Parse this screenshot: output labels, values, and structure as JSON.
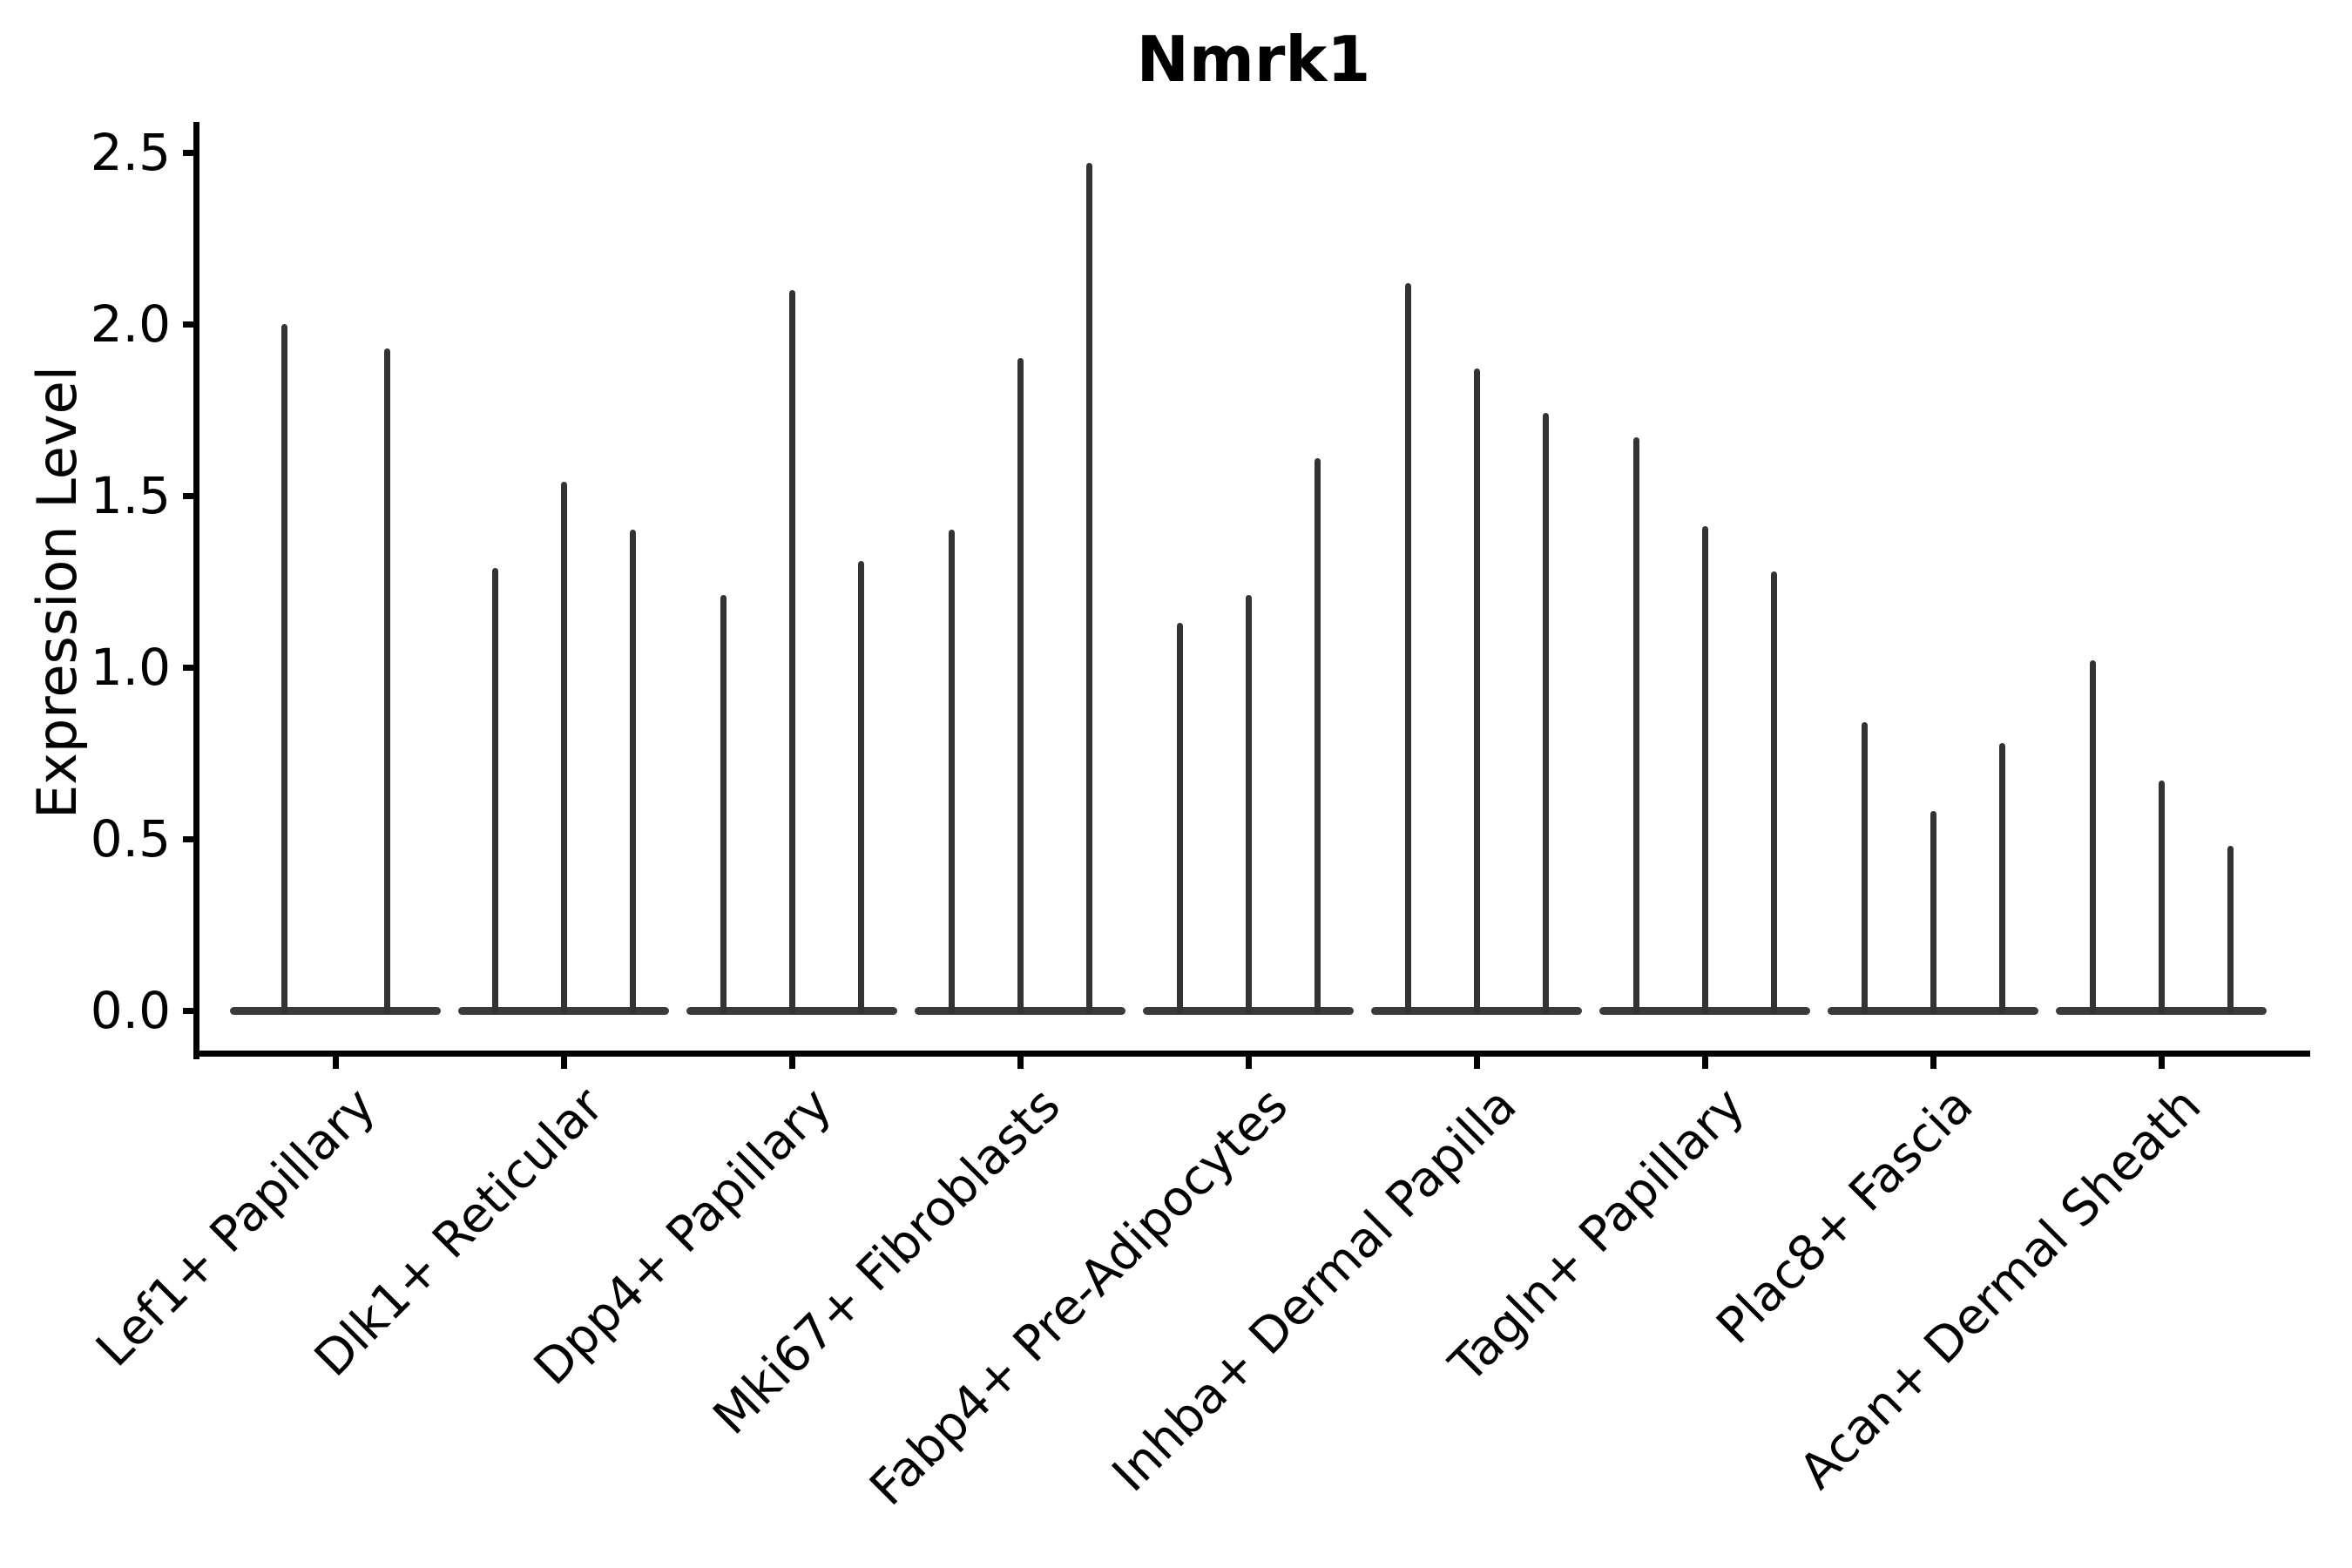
{
  "title": "Nmrk1",
  "y_axis": {
    "label": "Expression Level"
  },
  "chart_data": {
    "type": "violin",
    "title": "Nmrk1",
    "xlabel": "",
    "ylabel": "Expression Level",
    "ylim": [
      0.0,
      2.5
    ],
    "yticks": [
      2.5,
      2.0,
      1.5,
      1.0,
      0.5,
      0.0
    ],
    "grid": false,
    "legend": "none",
    "description": "Stacked-by-condition violin plot of Nmrk1 expression per fibroblast cluster; each cluster shows 2-3 needle-like violins whose mass sits at 0 with a thin spike reaching the maximum expression value.",
    "categories": [
      "Lef1+ Papillary",
      "Dlk1+ Reticular",
      "Dpp4+ Papillary",
      "Mki67+ Fibroblasts",
      "Fabp4+ Pre-Adipocytes",
      "Inhba+ Dermal Papilla",
      "Tagln+ Papillary",
      "Plac8+ Fascia",
      "Acan+ Dermal Sheath"
    ],
    "series": [
      {
        "category": "Lef1+ Papillary",
        "violin_max_values": [
          2.0,
          1.93
        ]
      },
      {
        "category": "Dlk1+ Reticular",
        "violin_max_values": [
          1.29,
          1.54,
          1.4
        ]
      },
      {
        "category": "Dpp4+ Papillary",
        "violin_max_values": [
          1.21,
          2.1,
          1.31
        ]
      },
      {
        "category": "Mki67+ Fibroblasts",
        "violin_max_values": [
          1.4,
          1.9,
          2.47
        ]
      },
      {
        "category": "Fabp4+ Pre-Adipocytes",
        "violin_max_values": [
          1.13,
          1.21,
          1.61
        ]
      },
      {
        "category": "Inhba+ Dermal Papilla",
        "violin_max_values": [
          2.12,
          1.87,
          1.74
        ]
      },
      {
        "category": "Tagln+ Papillary",
        "violin_max_values": [
          1.67,
          1.41,
          1.28
        ]
      },
      {
        "category": "Plac8+ Fascia",
        "violin_max_values": [
          0.84,
          0.58,
          0.78
        ]
      },
      {
        "category": "Acan+ Dermal Sheath",
        "violin_max_values": [
          1.02,
          0.67,
          0.48
        ]
      }
    ],
    "violin_color": "#333333",
    "axis_color": "#000000"
  }
}
